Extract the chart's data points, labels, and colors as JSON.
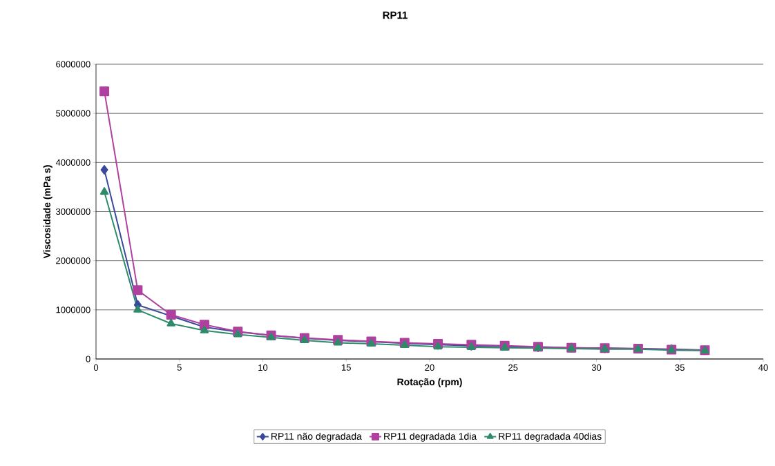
{
  "chart_data": {
    "type": "line",
    "title": "RP11",
    "xlabel": "Rotação (rpm)",
    "ylabel": "Viscosidade (mPa s)",
    "x": [
      0.5,
      2.5,
      4.5,
      6.5,
      8.5,
      10.5,
      12.5,
      14.5,
      16.5,
      18.5,
      20.5,
      22.5,
      24.5,
      26.5,
      28.5,
      30.5,
      32.5,
      34.5,
      36.5
    ],
    "series": [
      {
        "name": "RP11 não degradada",
        "color": "#3a4a9a",
        "marker": "diamond",
        "values": [
          3850000,
          1100000,
          null,
          650000,
          550000,
          480000,
          420000,
          380000,
          350000,
          320000,
          290000,
          270000,
          null,
          240000,
          230000,
          220000,
          210000,
          200000,
          180000
        ]
      },
      {
        "name": "RP11 degradada 1dia",
        "color": "#b040a0",
        "marker": "square",
        "values": [
          5450000,
          1400000,
          900000,
          700000,
          560000,
          480000,
          430000,
          390000,
          360000,
          330000,
          310000,
          290000,
          270000,
          250000,
          230000,
          220000,
          210000,
          190000,
          180000
        ]
      },
      {
        "name": "RP11 degradada 40dias",
        "color": "#2e8b6a",
        "marker": "triangle",
        "values": [
          3400000,
          1000000,
          720000,
          580000,
          500000,
          440000,
          380000,
          330000,
          310000,
          280000,
          250000,
          240000,
          230000,
          220000,
          210000,
          200000,
          200000,
          180000,
          170000
        ]
      }
    ],
    "xlim": [
      0,
      40
    ],
    "xticks": [
      0,
      5,
      10,
      15,
      20,
      25,
      30,
      35,
      40
    ],
    "ylim": [
      0,
      6000000
    ],
    "yticks": [
      0,
      1000000,
      2000000,
      3000000,
      4000000,
      5000000,
      6000000
    ],
    "grid": "y",
    "legend": "bottom"
  }
}
